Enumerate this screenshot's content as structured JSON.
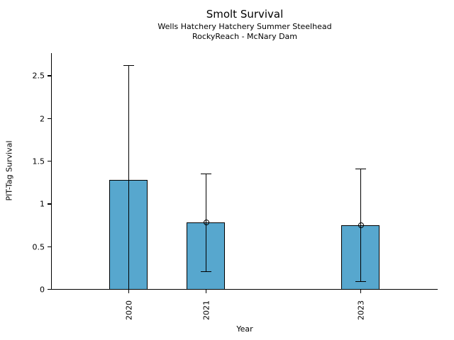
{
  "header": {
    "title": "Smolt Survival",
    "subtitle_line1": "Wells Hatchery Hatchery Summer Steelhead",
    "subtitle_line2": "RockyReach - McNary Dam"
  },
  "chart_data": {
    "type": "bar",
    "title": "Smolt Survival",
    "subtitle1": "Wells Hatchery Hatchery Summer Steelhead",
    "subtitle2": "RockyReach - McNary Dam",
    "xlabel": "Year",
    "ylabel": "PIT-Tag Survival",
    "categories": [
      "2020",
      "2021",
      "2023"
    ],
    "x": [
      2020,
      2021,
      2023
    ],
    "values": [
      1.28,
      0.78,
      0.75
    ],
    "error_low": [
      0.0,
      0.21,
      0.09
    ],
    "error_high": [
      2.62,
      1.35,
      1.41
    ],
    "point_marker": [
      false,
      true,
      true
    ],
    "bar_width_years": 0.5,
    "bar_color": "#57A7CE",
    "bar_edge_color": "#000000",
    "error_color": "#000000",
    "xlim": [
      2019,
      2024
    ],
    "ylim": [
      0,
      2.76
    ],
    "yticks": [
      0,
      0.5,
      1,
      1.5,
      2,
      2.5
    ],
    "ytick_labels": [
      "0",
      "0.5",
      "1",
      "1.5",
      "2",
      "2.5"
    ],
    "grid": false,
    "legend": null
  }
}
